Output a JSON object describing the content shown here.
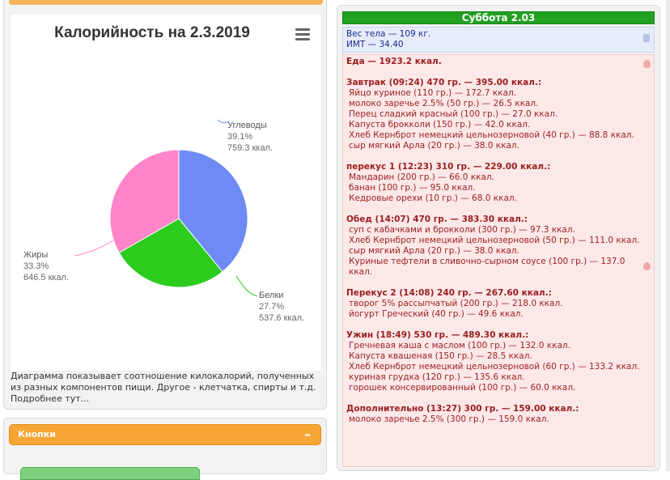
{
  "chart": {
    "title": "Калорийность на 2.3.2019",
    "description": "Диаграмма показывает соотношение килокалорий, полученных из разных компонентов пищи. Другое - клетчатка, спирты и т.д. Подробнее тут...",
    "menu_icon": "hamburger-menu-icon"
  },
  "chart_data": {
    "type": "pie",
    "title": "Калорийность на 2.3.2019",
    "slices": [
      {
        "name": "Углеводы",
        "percent_label": "39.1%",
        "value_label": "759.3 ккал.",
        "value": 759.3,
        "color": "#6e8bf5"
      },
      {
        "name": "Белки",
        "percent_label": "27.7%",
        "value_label": "537.6 ккал.",
        "value": 537.6,
        "color": "#2bcc1e"
      },
      {
        "name": "Жиры",
        "percent_label": "33.3%",
        "value_label": "646.5 ккал.",
        "value": 646.5,
        "color": "#ff85c8"
      }
    ]
  },
  "buttons": {
    "title": "Кнопки",
    "toggle": "–"
  },
  "day": {
    "header": "Суббота 2.03",
    "weight": "Вес тела — 109 кг.",
    "bmi": "ИМТ — 34.40",
    "food_total": "Еда — 1923.2 ккал.",
    "meals": [
      {
        "title": "Завтрак (09:24) 470 гр. — 395.00 ккал.:",
        "items": [
          "Яйцо куриное (110 гр.) — 172.7 ккал.",
          "молоко заречье 2.5% (50 гр.) — 26.5 ккал.",
          "Перец сладкий красный (100 гр.) — 27.0 ккал.",
          "Капуста брокколи (150 гр.) — 42.0 ккал.",
          "Хлеб Кернброт немецкий цельнозерновой (40 гр.) — 88.8 ккал.",
          "сыр мягкий Арла (20 гр.) — 38.0 ккал."
        ]
      },
      {
        "title": "перекус 1 (12:23) 310 гр. — 229.00 ккал.:",
        "items": [
          "Мандарин (200 гр.) — 66.0 ккал.",
          "банан (100 гр.) — 95.0 ккал.",
          "Кедровые орехи (10 гр.) — 68.0 ккал."
        ]
      },
      {
        "title": "Обед (14:07) 470 гр. — 383.30 ккал.:",
        "items": [
          "суп с кабачками и брокколи (300 гр.) — 97.3 ккал.",
          "Хлеб Кернброт немецкий цельнозерновой (50 гр.) — 111.0 ккал.",
          "сыр мягкий Арла (20 гр.) — 38.0 ккал.",
          "Куриные тефтели в сливочно-сырном соусе (100 гр.) — 137.0 ккал."
        ]
      },
      {
        "title": "Перекус 2 (14:08) 240 гр. — 267.60 ккал.:",
        "items": [
          "творог 5% рассыпчатый (200 гр.) — 218.0 ккал.",
          "йогурт Греческий (40 гр.) — 49.6 ккал."
        ]
      },
      {
        "title": "Ужин (18:49) 530 гр. — 489.30 ккал.:",
        "items": [
          "Гречневая каша с маслом (100 гр.) — 132.0 ккал.",
          "Капуста квашеная (150 гр.) — 28.5 ккал.",
          "Хлеб Кернброт немецкий цельнозерновой (60 гр.) — 133.2 ккал.",
          "куриная грудка (120 гр.) — 135.6 ккал.",
          "горошек консервированный (100 гр.) — 60.0 ккал."
        ]
      },
      {
        "title": "Дополнительно (13:27) 300 гр. — 159.00 ккал.:",
        "items": [
          "молоко заречье 2.5% (300 гр.) — 159.0 ккал."
        ]
      }
    ]
  }
}
